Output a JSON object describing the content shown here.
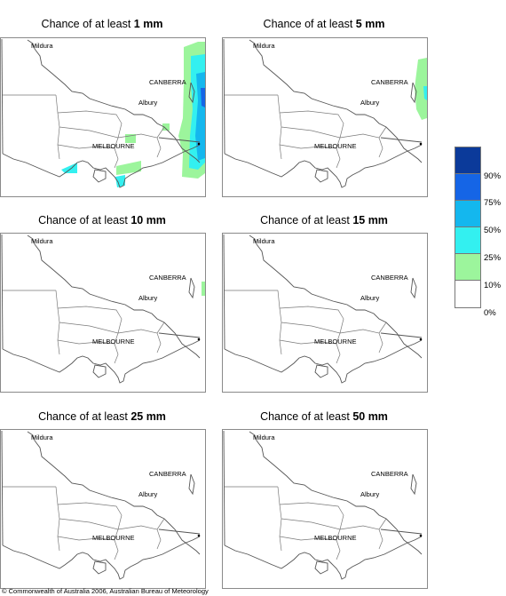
{
  "panels": [
    {
      "prefix": "Chance of at least ",
      "amount": "1 mm"
    },
    {
      "prefix": "Chance of at least ",
      "amount": "5 mm"
    },
    {
      "prefix": "Chance of at least ",
      "amount": "10 mm"
    },
    {
      "prefix": "Chance of at least ",
      "amount": "15 mm"
    },
    {
      "prefix": "Chance of at least ",
      "amount": "25 mm"
    },
    {
      "prefix": "Chance of at least ",
      "amount": "50 mm"
    }
  ],
  "places": {
    "mildura": "Mildura",
    "canberra": "CANBERRA",
    "albury": "Albury",
    "melbourne": "MELBOURNE"
  },
  "legend": {
    "colors": [
      "#0b3a9a",
      "#1565e6",
      "#14b7ee",
      "#33f0f0",
      "#9cf59c",
      "#ffffff"
    ],
    "labels": [
      "90%",
      "75%",
      "50%",
      "25%",
      "10%",
      "0%"
    ]
  },
  "copyright": "© Commonwealth of Australia 2006, Australian Bureau of Meteorology"
}
